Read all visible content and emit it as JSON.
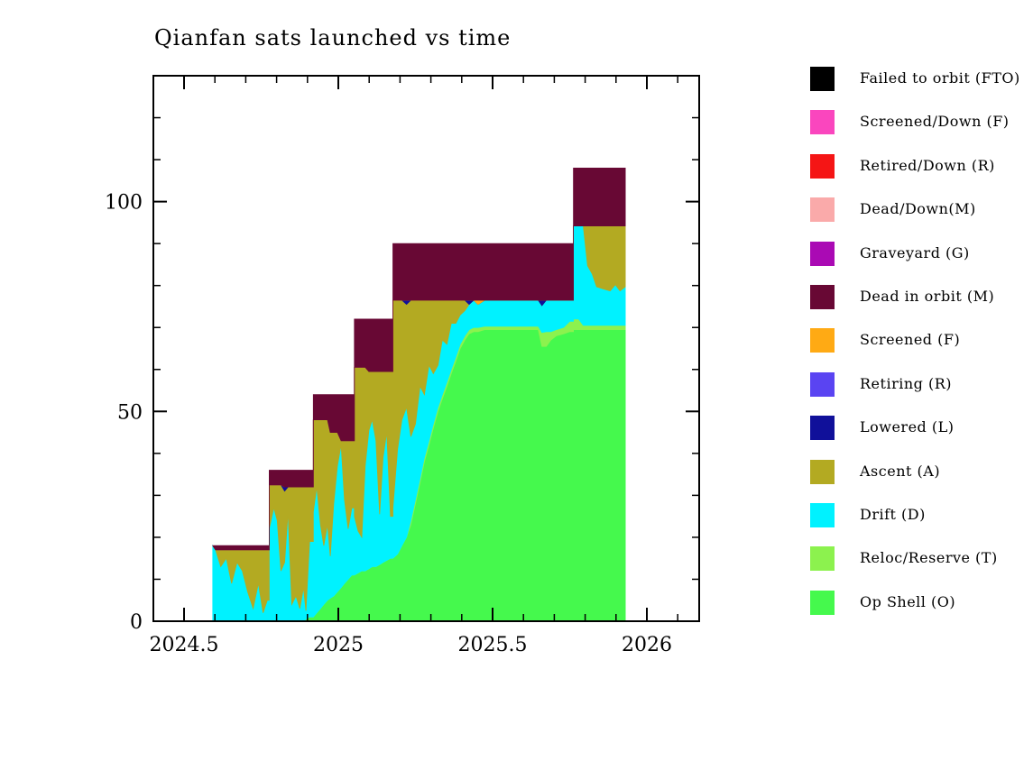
{
  "title": "Qianfan sats launched vs time",
  "axes": {
    "x": {
      "ticks": [
        {
          "v": 2024.5,
          "label": "2024.5"
        },
        {
          "v": 2025.0,
          "label": "2025"
        },
        {
          "v": 2025.5,
          "label": "2025.5"
        },
        {
          "v": 2026.0,
          "label": "2026"
        }
      ],
      "minor_start": 2024.4,
      "minor_step": 0.1,
      "minor_end": 2026.1,
      "range": [
        2024.4,
        2026.17
      ]
    },
    "y": {
      "ticks": [
        {
          "v": 0,
          "label": "0"
        },
        {
          "v": 50,
          "label": "50"
        },
        {
          "v": 100,
          "label": "100"
        }
      ],
      "minor_step": 10,
      "range": [
        0,
        130
      ]
    }
  },
  "legend": {
    "entries": [
      {
        "key": "fto",
        "label": "Failed to orbit (FTO)",
        "color": "#000000"
      },
      {
        "key": "screened_down",
        "label": "Screened/Down (F)",
        "color": "#FA46BE"
      },
      {
        "key": "retired_down",
        "label": "Retired/Down (R)",
        "color": "#F51515"
      },
      {
        "key": "dead_down",
        "label": "Dead/Down(M)",
        "color": "#FAAAAA"
      },
      {
        "key": "graveyard",
        "label": "Graveyard (G)",
        "color": "#AA0AB4"
      },
      {
        "key": "dead_in_orbit",
        "label": "Dead in orbit (M)",
        "color": "#680834"
      },
      {
        "key": "screened",
        "label": "Screened (F)",
        "color": "#FFAA14"
      },
      {
        "key": "retiring",
        "label": "Retiring (R)",
        "color": "#5A44F2"
      },
      {
        "key": "lowered",
        "label": "Lowered (L)",
        "color": "#10109A"
      },
      {
        "key": "ascent",
        "label": "Ascent (A)",
        "color": "#B3AA22"
      },
      {
        "key": "drift",
        "label": "Drift (D)",
        "color": "#00F2FF"
      },
      {
        "key": "reloc_reserve",
        "label": "Reloc/Reserve (T)",
        "color": "#8CF24E"
      },
      {
        "key": "op_shell",
        "label": "Op Shell (O)",
        "color": "#45F94D"
      }
    ]
  },
  "chart_data": {
    "type": "area",
    "stacked": true,
    "title": "Qianfan sats launched vs time",
    "xlabel": "",
    "ylabel": "",
    "x_range": [
      2024.4,
      2026.17
    ],
    "y_range": [
      0,
      130
    ],
    "grid": false,
    "legend_position": "right",
    "launch_events": [
      {
        "year": 2024.6,
        "total_after": 18
      },
      {
        "year": 2024.78,
        "total_after": 36
      },
      {
        "year": 2024.92,
        "total_after": 54
      },
      {
        "year": 2025.05,
        "total_after": 72
      },
      {
        "year": 2025.18,
        "total_after": 90
      },
      {
        "year": 2025.76,
        "total_after": 108
      }
    ],
    "stack_order": [
      "op_shell",
      "reloc_reserve",
      "drift",
      "ascent",
      "lowered",
      "screened",
      "dead_in_orbit"
    ],
    "columns": [
      "year",
      "op_shell",
      "reloc_reserve",
      "drift",
      "ascent",
      "lowered",
      "screened",
      "dead_in_orbit"
    ],
    "samples": [
      [
        2024.593,
        0,
        0,
        18,
        0,
        0,
        0,
        0
      ],
      [
        2024.602,
        0,
        0,
        17,
        0,
        0,
        0,
        1
      ],
      [
        2024.619,
        0,
        0,
        13,
        4,
        0,
        0,
        1
      ],
      [
        2024.637,
        0,
        0,
        15,
        2,
        0,
        0,
        1
      ],
      [
        2024.654,
        0,
        0,
        9,
        8,
        0,
        0,
        1
      ],
      [
        2024.672,
        0,
        0,
        14,
        3,
        0,
        0,
        1
      ],
      [
        2024.689,
        0,
        0,
        12,
        5,
        0,
        0,
        1
      ],
      [
        2024.706,
        0,
        0,
        7,
        10,
        0,
        0,
        1
      ],
      [
        2024.724,
        0,
        0,
        3,
        14,
        0,
        0,
        1
      ],
      [
        2024.741,
        0,
        0,
        9,
        8,
        0,
        0,
        1
      ],
      [
        2024.756,
        0,
        0,
        2,
        15,
        0,
        0,
        1
      ],
      [
        2024.77,
        0,
        0,
        5,
        12,
        0,
        0,
        1
      ],
      [
        2024.776,
        0,
        0,
        5,
        12,
        0,
        0,
        1
      ],
      [
        2024.776,
        0,
        0,
        22,
        10.5,
        0,
        0,
        3.5
      ],
      [
        2024.791,
        0,
        0,
        27,
        5.5,
        0,
        0,
        3.5
      ],
      [
        2024.802,
        0,
        0,
        24,
        8.5,
        0,
        0,
        3.5
      ],
      [
        2024.814,
        0,
        0,
        12,
        20.5,
        0,
        0,
        3.5
      ],
      [
        2024.826,
        0,
        0,
        14,
        17,
        1,
        0,
        4
      ],
      [
        2024.837,
        0,
        0,
        26,
        6,
        0,
        0,
        4
      ],
      [
        2024.849,
        0,
        0,
        4,
        28,
        0,
        0,
        4
      ],
      [
        2024.863,
        0,
        0,
        6,
        26,
        0,
        0,
        4
      ],
      [
        2024.875,
        0,
        0,
        3,
        29,
        0,
        0,
        4
      ],
      [
        2024.887,
        0,
        0,
        8,
        24,
        0,
        0,
        4
      ],
      [
        2024.895,
        0.5,
        0,
        2,
        29.5,
        0,
        0,
        4
      ],
      [
        2024.907,
        1,
        0,
        18,
        13,
        0,
        0,
        4
      ],
      [
        2024.919,
        1,
        0,
        18,
        13,
        0,
        0,
        4
      ],
      [
        2024.919,
        1,
        0,
        25,
        22,
        0,
        0,
        6
      ],
      [
        2024.93,
        2,
        0,
        30,
        16,
        0,
        0,
        6
      ],
      [
        2024.942,
        3,
        0,
        20,
        25,
        0,
        0,
        6
      ],
      [
        2024.953,
        4,
        0,
        14,
        30,
        0,
        0,
        6
      ],
      [
        2024.965,
        5,
        0,
        18,
        25,
        0,
        0,
        6
      ],
      [
        2024.974,
        5.5,
        0,
        10,
        29.5,
        0,
        0,
        9
      ],
      [
        2024.985,
        6,
        0,
        22,
        17,
        0,
        0,
        9
      ],
      [
        2024.997,
        7,
        0,
        30,
        8,
        0,
        0,
        9
      ],
      [
        2025.009,
        8,
        0,
        34,
        1,
        0,
        0,
        11
      ],
      [
        2025.02,
        9,
        0,
        20,
        14,
        0,
        0,
        11
      ],
      [
        2025.032,
        10,
        0,
        12,
        21,
        0,
        0,
        11
      ],
      [
        2025.044,
        11,
        0,
        16,
        16,
        0,
        0,
        11
      ],
      [
        2025.052,
        11,
        0,
        16,
        16,
        0,
        0,
        11
      ],
      [
        2025.052,
        11,
        0,
        14,
        35.5,
        0,
        0,
        11.5
      ],
      [
        2025.064,
        11.5,
        0,
        10,
        39,
        0,
        0,
        11.5
      ],
      [
        2025.076,
        12,
        0,
        8,
        40.5,
        0,
        0,
        11.5
      ],
      [
        2025.087,
        12,
        0,
        25,
        23.5,
        0,
        0,
        11.5
      ],
      [
        2025.099,
        12.5,
        0,
        33,
        14,
        0,
        0,
        12.5
      ],
      [
        2025.11,
        13,
        0,
        35,
        11.5,
        0,
        0,
        12.5
      ],
      [
        2025.122,
        13,
        0,
        30,
        16.5,
        0,
        0,
        12.5
      ],
      [
        2025.134,
        13.5,
        0,
        12,
        34,
        0,
        0,
        12.5
      ],
      [
        2025.145,
        14,
        0,
        25,
        20.5,
        0,
        0,
        12.5
      ],
      [
        2025.157,
        14.5,
        0,
        30.5,
        14.5,
        0,
        0,
        12.5
      ],
      [
        2025.169,
        15,
        0,
        10,
        34.5,
        0,
        0,
        12.5
      ],
      [
        2025.177,
        15,
        0,
        10,
        34.5,
        0,
        0,
        12.5
      ],
      [
        2025.177,
        15,
        0,
        12,
        49.5,
        0,
        0,
        13.5
      ],
      [
        2025.192,
        16,
        0,
        25,
        35.5,
        0,
        0,
        13.5
      ],
      [
        2025.206,
        18,
        0,
        30,
        28.5,
        0,
        0,
        13.5
      ],
      [
        2025.221,
        20,
        0,
        31,
        24.5,
        1,
        0,
        13.5
      ],
      [
        2025.235,
        23,
        1,
        20,
        32.5,
        0,
        0,
        13.5
      ],
      [
        2025.25,
        28,
        1,
        18,
        29.5,
        0,
        0,
        13.5
      ],
      [
        2025.265,
        33,
        1,
        22,
        20.5,
        0,
        0,
        13.5
      ],
      [
        2025.279,
        38,
        1,
        15,
        22.5,
        0,
        0,
        13.5
      ],
      [
        2025.294,
        42,
        1,
        18,
        15.5,
        0,
        0,
        13.5
      ],
      [
        2025.308,
        46,
        1,
        12,
        17.5,
        0,
        0,
        13.5
      ],
      [
        2025.323,
        50,
        1,
        10,
        15.5,
        0,
        0,
        13.5
      ],
      [
        2025.337,
        53,
        1,
        13,
        9.5,
        0,
        0,
        13.5
      ],
      [
        2025.352,
        56,
        1,
        9,
        10.5,
        0,
        0,
        13.5
      ],
      [
        2025.366,
        59,
        1,
        11,
        5.5,
        0,
        0,
        13.5
      ],
      [
        2025.381,
        62,
        1,
        8,
        5.5,
        0,
        0,
        13.5
      ],
      [
        2025.395,
        65,
        1,
        7,
        3.5,
        0,
        0,
        13.5
      ],
      [
        2025.41,
        67,
        1,
        6,
        2.5,
        0,
        0,
        13.5
      ],
      [
        2025.424,
        68.5,
        1,
        6,
        0,
        1,
        0,
        13.5
      ],
      [
        2025.439,
        69,
        1,
        6.5,
        0,
        0,
        0,
        13.5
      ],
      [
        2025.453,
        69,
        1,
        5.5,
        0,
        0,
        1,
        13.5
      ],
      [
        2025.474,
        69.5,
        0.8,
        6.2,
        0,
        0,
        0,
        13.5
      ],
      [
        2025.532,
        69.5,
        0.8,
        6.2,
        0,
        0,
        0,
        13.5
      ],
      [
        2025.59,
        69.5,
        0.8,
        6.2,
        0,
        0,
        0,
        13.5
      ],
      [
        2025.648,
        69.5,
        0.8,
        6.2,
        0,
        0,
        0,
        13.5
      ],
      [
        2025.66,
        65.5,
        3.3,
        6.4,
        0,
        1.3,
        0,
        13.5
      ],
      [
        2025.674,
        65.5,
        3.5,
        7.5,
        0,
        0,
        0,
        13.5
      ],
      [
        2025.689,
        67,
        2,
        7.5,
        0,
        0,
        0,
        13.5
      ],
      [
        2025.706,
        68,
        1.5,
        7,
        0,
        0,
        0,
        13.5
      ],
      [
        2025.73,
        68.5,
        1.5,
        6.5,
        0,
        0,
        0,
        13.5
      ],
      [
        2025.75,
        69,
        2.5,
        5,
        0,
        0,
        0,
        13.5
      ],
      [
        2025.762,
        69,
        2.5,
        5,
        0,
        0,
        0,
        13.5
      ],
      [
        2025.762,
        69.5,
        2.5,
        22.2,
        0,
        0,
        0,
        13.8
      ],
      [
        2025.779,
        69.5,
        2.5,
        22.2,
        0,
        0,
        0,
        13.8
      ],
      [
        2025.794,
        69.5,
        1,
        23.7,
        0,
        0,
        0,
        13.8
      ],
      [
        2025.808,
        69.5,
        1,
        14.2,
        9.5,
        0,
        0,
        13.8
      ],
      [
        2025.823,
        69.5,
        1,
        12.2,
        11.5,
        0,
        0,
        13.8
      ],
      [
        2025.837,
        69.5,
        1,
        9.2,
        14.5,
        0,
        0,
        13.8
      ],
      [
        2025.858,
        69.5,
        1,
        8.7,
        15,
        0,
        0,
        13.8
      ],
      [
        2025.881,
        69.5,
        1,
        8.2,
        15.5,
        0,
        0,
        13.8
      ],
      [
        2025.898,
        69.5,
        1,
        9.7,
        14,
        0,
        0,
        13.8
      ],
      [
        2025.913,
        69.5,
        1,
        8.2,
        15.5,
        0,
        0,
        13.8
      ],
      [
        2025.93,
        69.5,
        1,
        9.2,
        14.5,
        0,
        0,
        13.8
      ]
    ]
  }
}
